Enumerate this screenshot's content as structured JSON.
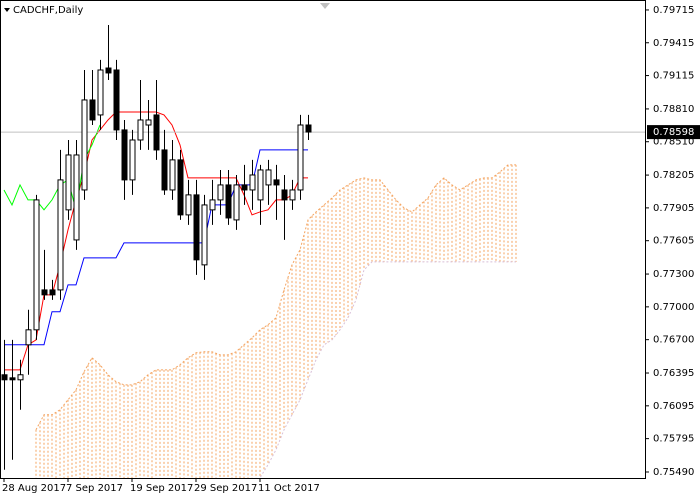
{
  "chart_data": {
    "type": "candlestick",
    "title": "CADCHF,Daily",
    "categories": [
      "28 Aug 2017",
      null,
      null,
      null,
      null,
      null,
      null,
      null,
      "7 Sep 2017",
      null,
      null,
      null,
      null,
      null,
      null,
      null,
      "19 Sep 2017",
      null,
      null,
      null,
      null,
      null,
      null,
      null,
      "29 Sep 2017",
      null,
      null,
      null,
      null,
      null,
      null,
      null,
      "11 Oct 2017",
      null,
      null,
      null,
      null,
      null,
      null,
      null,
      null,
      null,
      null,
      null,
      null,
      null,
      null,
      null,
      null,
      null,
      null,
      null,
      null,
      null,
      null,
      null,
      null,
      null,
      null,
      null,
      null,
      null,
      null,
      null,
      null
    ],
    "candles": [
      {
        "open": 0.76379,
        "high": 0.76698,
        "low": 0.7551,
        "close": 0.76333
      },
      {
        "open": 0.76351,
        "high": 0.76698,
        "low": 0.75602,
        "close": 0.76333
      },
      {
        "open": 0.76333,
        "high": 0.76516,
        "low": 0.76059,
        "close": 0.76379
      },
      {
        "open": 0.76653,
        "high": 0.76973,
        "low": 0.76379,
        "close": 0.7679
      },
      {
        "open": 0.7679,
        "high": 0.78024,
        "low": 0.76698,
        "close": 0.77978
      },
      {
        "open": 0.77155,
        "high": 0.77521,
        "low": 0.77064,
        "close": 0.7711
      },
      {
        "open": 0.77155,
        "high": 0.77247,
        "low": 0.77064,
        "close": 0.7711
      },
      {
        "open": 0.77155,
        "high": 0.78435,
        "low": 0.77064,
        "close": 0.78161
      },
      {
        "open": 0.77887,
        "high": 0.78526,
        "low": 0.77795,
        "close": 0.78389
      },
      {
        "open": 0.77612,
        "high": 0.78526,
        "low": 0.77521,
        "close": 0.78389
      },
      {
        "open": 0.78069,
        "high": 0.79166,
        "low": 0.77978,
        "close": 0.78892
      },
      {
        "open": 0.78892,
        "high": 0.79166,
        "low": 0.78663,
        "close": 0.78709
      },
      {
        "open": 0.78755,
        "high": 0.79258,
        "low": 0.78618,
        "close": 0.79166
      },
      {
        "open": 0.79184,
        "high": 0.79577,
        "low": 0.79075,
        "close": 0.79139
      },
      {
        "open": 0.79166,
        "high": 0.79258,
        "low": 0.78526,
        "close": 0.78618
      },
      {
        "open": 0.78618,
        "high": 0.78709,
        "low": 0.77978,
        "close": 0.78161
      },
      {
        "open": 0.78161,
        "high": 0.78618,
        "low": 0.78024,
        "close": 0.78526
      },
      {
        "open": 0.78526,
        "high": 0.79075,
        "low": 0.78435,
        "close": 0.78709
      },
      {
        "open": 0.78663,
        "high": 0.78892,
        "low": 0.78435,
        "close": 0.78709
      },
      {
        "open": 0.78755,
        "high": 0.79075,
        "low": 0.78344,
        "close": 0.78435
      },
      {
        "open": 0.78435,
        "high": 0.78618,
        "low": 0.78024,
        "close": 0.78069
      },
      {
        "open": 0.78069,
        "high": 0.78526,
        "low": 0.77978,
        "close": 0.78344
      },
      {
        "open": 0.78344,
        "high": 0.78435,
        "low": 0.77795,
        "close": 0.77841
      },
      {
        "open": 0.77841,
        "high": 0.78161,
        "low": 0.7775,
        "close": 0.78024
      },
      {
        "open": 0.78024,
        "high": 0.78161,
        "low": 0.77293,
        "close": 0.7743
      },
      {
        "open": 0.77384,
        "high": 0.78024,
        "low": 0.77247,
        "close": 0.77932
      },
      {
        "open": 0.77887,
        "high": 0.78161,
        "low": 0.7775,
        "close": 0.77978
      },
      {
        "open": 0.77978,
        "high": 0.78252,
        "low": 0.77841,
        "close": 0.78115
      },
      {
        "open": 0.78115,
        "high": 0.78252,
        "low": 0.7775,
        "close": 0.77813
      },
      {
        "open": 0.77795,
        "high": 0.78206,
        "low": 0.77704,
        "close": 0.78115
      },
      {
        "open": 0.78115,
        "high": 0.78298,
        "low": 0.77932,
        "close": 0.78069
      },
      {
        "open": 0.78069,
        "high": 0.78344,
        "low": 0.77887,
        "close": 0.78206
      },
      {
        "open": 0.77978,
        "high": 0.78298,
        "low": 0.7775,
        "close": 0.78252
      },
      {
        "open": 0.78115,
        "high": 0.78344,
        "low": 0.77932,
        "close": 0.78252
      },
      {
        "open": 0.78161,
        "high": 0.78298,
        "low": 0.77795,
        "close": 0.78115
      },
      {
        "open": 0.78069,
        "high": 0.78206,
        "low": 0.77612,
        "close": 0.77978
      },
      {
        "open": 0.77978,
        "high": 0.78161,
        "low": 0.77887,
        "close": 0.78069
      },
      {
        "open": 0.78069,
        "high": 0.78755,
        "low": 0.77978,
        "close": 0.78663
      },
      {
        "open": 0.78663,
        "high": 0.78755,
        "low": 0.78526,
        "close": 0.78599
      }
    ],
    "lines": [
      {
        "color": "#ff0000",
        "values": [
          0.76424,
          0.76424,
          0.76424,
          0.76653,
          0.76698,
          0.7711,
          0.7711,
          0.77384,
          0.77704,
          0.77978,
          0.78206,
          0.78526,
          0.78618,
          0.78709,
          0.78782,
          0.78782,
          0.78782,
          0.78782,
          0.78782,
          0.78782,
          0.78755,
          0.78663,
          0.78481,
          0.78179,
          0.78179,
          0.78179,
          0.78179,
          0.78179,
          0.78179,
          0.78179,
          0.78024,
          0.77841,
          0.77868,
          0.77887,
          0.77978,
          0.77978,
          0.78024,
          0.78179,
          0.78179,
          null,
          null,
          null,
          null,
          null,
          null,
          null,
          null,
          null,
          null,
          null,
          null,
          null,
          null,
          null,
          null,
          null,
          null,
          null,
          null,
          null,
          null,
          null,
          null,
          null,
          null
        ]
      },
      {
        "color": "#0000ff",
        "values": [
          0.76653,
          0.76653,
          0.76653,
          0.76653,
          0.76653,
          0.76653,
          0.76955,
          0.76955,
          0.77201,
          0.77201,
          0.77448,
          0.77448,
          0.77448,
          0.77448,
          0.77448,
          0.77585,
          0.77585,
          0.77585,
          0.77585,
          0.77585,
          0.77585,
          0.77585,
          0.77585,
          0.77585,
          0.77585,
          0.77585,
          0.77932,
          0.77932,
          0.77932,
          0.78115,
          0.78115,
          0.78115,
          0.78435,
          0.78435,
          0.78435,
          0.78435,
          0.78435,
          0.78435,
          0.78435,
          null,
          null,
          null,
          null,
          null,
          null,
          null,
          null,
          null,
          null,
          null,
          null,
          null,
          null,
          null,
          null,
          null,
          null,
          null,
          null,
          null,
          null,
          null,
          null,
          null,
          null
        ]
      },
      {
        "color": "#00ff00",
        "values": [
          0.78069,
          0.77932,
          0.78115,
          0.77978,
          0.77978,
          0.77887,
          0.77978,
          0.78115,
          0.78161,
          0.77887,
          0.78344,
          0.78481,
          0.78663,
          null,
          null,
          null,
          null,
          null,
          null,
          null,
          null,
          null,
          null,
          null,
          null,
          null,
          null,
          null,
          null,
          null,
          null,
          null,
          null,
          null,
          null,
          null,
          null,
          null,
          null,
          null,
          null,
          null,
          null,
          null,
          null,
          null,
          null,
          null,
          null,
          null,
          null,
          null,
          null,
          null,
          null,
          null,
          null,
          null,
          null,
          null,
          null,
          null,
          null,
          null,
          null
        ]
      }
    ],
    "cloud": [
      {
        "color": "#f4a460",
        "values": [
          null,
          null,
          null,
          null,
          0.75876,
          0.76013,
          0.76013,
          0.76059,
          0.7615,
          0.76241,
          0.76406,
          0.76534,
          0.7647,
          0.76379,
          0.76315,
          0.76287,
          0.76287,
          0.76315,
          0.76379,
          0.76424,
          0.76424,
          0.76424,
          0.7647,
          0.76534,
          0.7658,
          0.76589,
          0.76589,
          0.76561,
          0.76561,
          0.76589,
          0.76653,
          0.76717,
          0.7679,
          0.76836,
          0.769,
          0.77155,
          0.77384,
          0.77521,
          0.77795,
          0.77868,
          0.77932,
          0.77996,
          0.78069,
          0.78115,
          0.78161,
          0.78179,
          0.78161,
          0.78161,
          0.78069,
          0.77978,
          0.77905,
          0.77868,
          0.77932,
          0.77996,
          0.78115,
          0.78179,
          0.78115,
          0.78069,
          0.78115,
          0.78161,
          0.78179,
          0.78179,
          0.78234,
          0.78298,
          0.78298
        ]
      },
      {
        "color": "#d8bfd8",
        "values": [
          null,
          null,
          null,
          null,
          0.752,
          0.752,
          0.752,
          0.752,
          0.752,
          0.752,
          0.752,
          0.752,
          0.752,
          0.752,
          0.752,
          0.752,
          0.752,
          0.752,
          0.752,
          0.752,
          0.752,
          0.752,
          0.752,
          0.752,
          0.752,
          0.752,
          0.752,
          0.752,
          0.752,
          0.752,
          0.752,
          0.752,
          0.75437,
          0.75556,
          0.75693,
          0.75876,
          0.76013,
          0.7615,
          0.76333,
          0.76516,
          0.76653,
          0.76698,
          0.7679,
          0.769,
          0.77064,
          0.77338,
          0.77411,
          0.77411,
          0.77411,
          0.77411,
          0.77411,
          0.77411,
          0.77411,
          0.77411,
          0.77411,
          0.77411,
          0.77411,
          0.77411,
          0.77411,
          0.77411,
          0.77411,
          0.77411,
          0.77411,
          0.77411,
          0.77411
        ]
      }
    ],
    "current_price": 0.78598,
    "ylim": [
      0.75435,
      0.79806
    ],
    "yticks": [
      0.79715,
      0.79415,
      0.79115,
      {
        "value": 0.7881,
        "label": "0.78810"
      },
      {
        "value": 0.7851,
        "label": "0.78510"
      },
      0.78205,
      0.77905,
      0.77605,
      {
        "value": 0.773,
        "label": "0.77300"
      },
      {
        "value": 0.77,
        "label": "0.77000"
      },
      {
        "value": 0.767,
        "label": "0.76700"
      },
      0.76395,
      0.76095,
      0.75795,
      {
        "value": 0.7549,
        "label": "0.75490"
      }
    ]
  }
}
